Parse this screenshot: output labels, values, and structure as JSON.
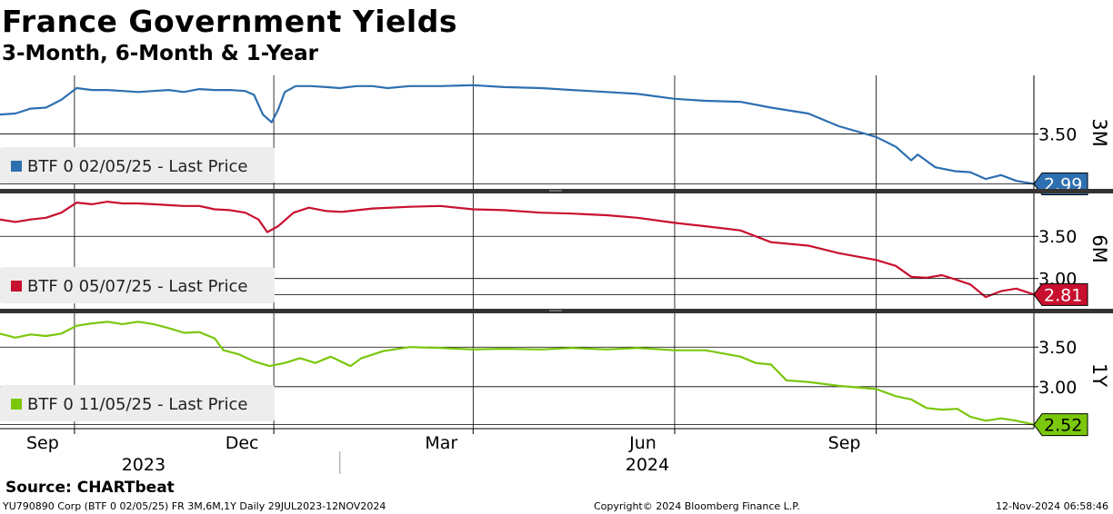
{
  "title": "France Government Yields",
  "subtitle": "3-Month, 6-Month & 1-Year",
  "source": "Source: CHARTbeat",
  "footer": {
    "left": "YU790890 Corp (BTF 0 02/05/25) FR 3M,6M,1Y  Daily 29JUL2023-12NOV2024",
    "center": "Copyright© 2024 Bloomberg Finance L.P.",
    "right": "12-Nov-2024 06:58:46"
  },
  "colors": {
    "3M": "#2e6fb0",
    "6M": "#c8102e",
    "1Y": "#7ac70c"
  },
  "chart_data": {
    "type": "line",
    "x_axis": {
      "range": [
        "2023-07-29",
        "2024-11-12"
      ],
      "month_labels": [
        {
          "label": "Sep",
          "date": "2023-09-01"
        },
        {
          "label": "Dec",
          "date": "2023-12-01"
        },
        {
          "label": "Mar",
          "date": "2024-03-01"
        },
        {
          "label": "Jun",
          "date": "2024-06-01"
        },
        {
          "label": "Sep",
          "date": "2024-09-01"
        }
      ],
      "year_labels": [
        {
          "label": "2023",
          "date": "2023-10-15"
        },
        {
          "label": "2024",
          "date": "2024-06-01"
        }
      ],
      "year_divider": "2024-01-01"
    },
    "panels": [
      {
        "tag": "3M",
        "legend": "BTF 0 02/05/25 - Last Price",
        "last_value": "2.99",
        "ylim": [
          2.92,
          4.1
        ],
        "yticks": [
          {
            "v": 3.5,
            "label": "3.50"
          }
        ],
        "series": {
          "color": "#2e6fb0",
          "points": [
            [
              "2023-07-29",
              3.7
            ],
            [
              "2023-08-05",
              3.71
            ],
            [
              "2023-08-12",
              3.76
            ],
            [
              "2023-08-19",
              3.77
            ],
            [
              "2023-08-26",
              3.85
            ],
            [
              "2023-09-02",
              3.97
            ],
            [
              "2023-09-09",
              3.95
            ],
            [
              "2023-09-16",
              3.95
            ],
            [
              "2023-09-23",
              3.94
            ],
            [
              "2023-09-30",
              3.93
            ],
            [
              "2023-10-07",
              3.94
            ],
            [
              "2023-10-14",
              3.95
            ],
            [
              "2023-10-21",
              3.93
            ],
            [
              "2023-10-28",
              3.96
            ],
            [
              "2023-11-04",
              3.95
            ],
            [
              "2023-11-11",
              3.95
            ],
            [
              "2023-11-18",
              3.94
            ],
            [
              "2023-11-22",
              3.9
            ],
            [
              "2023-11-26",
              3.7
            ],
            [
              "2023-11-30",
              3.62
            ],
            [
              "2023-12-03",
              3.75
            ],
            [
              "2023-12-06",
              3.93
            ],
            [
              "2023-12-11",
              3.99
            ],
            [
              "2023-12-18",
              3.99
            ],
            [
              "2023-12-25",
              3.98
            ],
            [
              "2023-12-31",
              3.97
            ],
            [
              "2024-01-08",
              3.99
            ],
            [
              "2024-01-15",
              3.99
            ],
            [
              "2024-01-22",
              3.97
            ],
            [
              "2024-02-01",
              3.99
            ],
            [
              "2024-02-15",
              3.99
            ],
            [
              "2024-03-01",
              4.0
            ],
            [
              "2024-03-15",
              3.98
            ],
            [
              "2024-04-01",
              3.97
            ],
            [
              "2024-04-15",
              3.95
            ],
            [
              "2024-05-01",
              3.93
            ],
            [
              "2024-05-15",
              3.91
            ],
            [
              "2024-06-01",
              3.86
            ],
            [
              "2024-06-15",
              3.84
            ],
            [
              "2024-07-01",
              3.83
            ],
            [
              "2024-07-15",
              3.77
            ],
            [
              "2024-08-01",
              3.71
            ],
            [
              "2024-08-15",
              3.58
            ],
            [
              "2024-09-01",
              3.47
            ],
            [
              "2024-09-10",
              3.37
            ],
            [
              "2024-09-17",
              3.23
            ],
            [
              "2024-09-20",
              3.29
            ],
            [
              "2024-09-28",
              3.16
            ],
            [
              "2024-10-07",
              3.12
            ],
            [
              "2024-10-14",
              3.11
            ],
            [
              "2024-10-21",
              3.04
            ],
            [
              "2024-10-28",
              3.08
            ],
            [
              "2024-11-04",
              3.02
            ],
            [
              "2024-11-12",
              2.99
            ]
          ]
        }
      },
      {
        "tag": "6M",
        "legend": "BTF 0 05/07/25 - Last Price",
        "last_value": "2.81",
        "ylim": [
          2.62,
          4.03
        ],
        "yticks": [
          {
            "v": 3.5,
            "label": "3.50"
          },
          {
            "v": 3.0,
            "label": "3.00"
          }
        ],
        "series": {
          "color": "#c8102e",
          "points": [
            [
              "2023-07-29",
              3.7
            ],
            [
              "2023-08-05",
              3.67
            ],
            [
              "2023-08-12",
              3.7
            ],
            [
              "2023-08-19",
              3.72
            ],
            [
              "2023-08-26",
              3.78
            ],
            [
              "2023-09-02",
              3.9
            ],
            [
              "2023-09-09",
              3.88
            ],
            [
              "2023-09-16",
              3.91
            ],
            [
              "2023-09-23",
              3.89
            ],
            [
              "2023-09-30",
              3.89
            ],
            [
              "2023-10-07",
              3.88
            ],
            [
              "2023-10-14",
              3.87
            ],
            [
              "2023-10-21",
              3.86
            ],
            [
              "2023-10-28",
              3.86
            ],
            [
              "2023-11-04",
              3.82
            ],
            [
              "2023-11-11",
              3.81
            ],
            [
              "2023-11-18",
              3.78
            ],
            [
              "2023-11-24",
              3.7
            ],
            [
              "2023-11-28",
              3.55
            ],
            [
              "2023-12-03",
              3.62
            ],
            [
              "2023-12-10",
              3.78
            ],
            [
              "2023-12-17",
              3.84
            ],
            [
              "2023-12-25",
              3.8
            ],
            [
              "2024-01-01",
              3.79
            ],
            [
              "2024-01-15",
              3.83
            ],
            [
              "2024-02-01",
              3.85
            ],
            [
              "2024-02-15",
              3.86
            ],
            [
              "2024-03-01",
              3.82
            ],
            [
              "2024-03-15",
              3.81
            ],
            [
              "2024-04-01",
              3.78
            ],
            [
              "2024-04-15",
              3.77
            ],
            [
              "2024-05-01",
              3.75
            ],
            [
              "2024-05-15",
              3.72
            ],
            [
              "2024-06-01",
              3.66
            ],
            [
              "2024-06-15",
              3.62
            ],
            [
              "2024-07-01",
              3.57
            ],
            [
              "2024-07-15",
              3.43
            ],
            [
              "2024-08-01",
              3.39
            ],
            [
              "2024-08-15",
              3.3
            ],
            [
              "2024-09-01",
              3.22
            ],
            [
              "2024-09-10",
              3.15
            ],
            [
              "2024-09-17",
              3.02
            ],
            [
              "2024-09-24",
              3.01
            ],
            [
              "2024-10-01",
              3.04
            ],
            [
              "2024-10-07",
              2.99
            ],
            [
              "2024-10-14",
              2.93
            ],
            [
              "2024-10-21",
              2.78
            ],
            [
              "2024-10-28",
              2.85
            ],
            [
              "2024-11-04",
              2.88
            ],
            [
              "2024-11-12",
              2.81
            ]
          ]
        }
      },
      {
        "tag": "1Y",
        "legend": "BTF 0 11/05/25 - Last Price",
        "last_value": "2.52",
        "ylim": [
          2.47,
          3.95
        ],
        "yticks": [
          {
            "v": 3.5,
            "label": "3.50"
          },
          {
            "v": 3.0,
            "label": "3.00"
          }
        ],
        "series": {
          "color": "#7ac70c",
          "points": [
            [
              "2023-07-29",
              3.67
            ],
            [
              "2023-08-05",
              3.62
            ],
            [
              "2023-08-12",
              3.66
            ],
            [
              "2023-08-19",
              3.64
            ],
            [
              "2023-08-26",
              3.67
            ],
            [
              "2023-09-02",
              3.77
            ],
            [
              "2023-09-09",
              3.8
            ],
            [
              "2023-09-16",
              3.82
            ],
            [
              "2023-09-23",
              3.79
            ],
            [
              "2023-09-30",
              3.82
            ],
            [
              "2023-10-07",
              3.79
            ],
            [
              "2023-10-14",
              3.74
            ],
            [
              "2023-10-21",
              3.68
            ],
            [
              "2023-10-28",
              3.69
            ],
            [
              "2023-11-04",
              3.61
            ],
            [
              "2023-11-08",
              3.46
            ],
            [
              "2023-11-15",
              3.41
            ],
            [
              "2023-11-22",
              3.32
            ],
            [
              "2023-11-29",
              3.26
            ],
            [
              "2023-12-06",
              3.3
            ],
            [
              "2023-12-13",
              3.36
            ],
            [
              "2023-12-20",
              3.3
            ],
            [
              "2023-12-27",
              3.38
            ],
            [
              "2024-01-05",
              3.26
            ],
            [
              "2024-01-10",
              3.36
            ],
            [
              "2024-01-20",
              3.45
            ],
            [
              "2024-02-01",
              3.5
            ],
            [
              "2024-02-15",
              3.49
            ],
            [
              "2024-03-01",
              3.47
            ],
            [
              "2024-03-15",
              3.48
            ],
            [
              "2024-04-01",
              3.47
            ],
            [
              "2024-04-15",
              3.49
            ],
            [
              "2024-05-01",
              3.47
            ],
            [
              "2024-05-15",
              3.49
            ],
            [
              "2024-06-01",
              3.46
            ],
            [
              "2024-06-15",
              3.46
            ],
            [
              "2024-07-01",
              3.38
            ],
            [
              "2024-07-08",
              3.3
            ],
            [
              "2024-07-15",
              3.28
            ],
            [
              "2024-07-22",
              3.08
            ],
            [
              "2024-08-01",
              3.06
            ],
            [
              "2024-08-15",
              3.01
            ],
            [
              "2024-09-01",
              2.97
            ],
            [
              "2024-09-10",
              2.88
            ],
            [
              "2024-09-17",
              2.84
            ],
            [
              "2024-09-24",
              2.73
            ],
            [
              "2024-10-01",
              2.71
            ],
            [
              "2024-10-08",
              2.72
            ],
            [
              "2024-10-14",
              2.62
            ],
            [
              "2024-10-21",
              2.57
            ],
            [
              "2024-10-28",
              2.6
            ],
            [
              "2024-11-04",
              2.57
            ],
            [
              "2024-11-12",
              2.52
            ]
          ]
        }
      }
    ]
  }
}
